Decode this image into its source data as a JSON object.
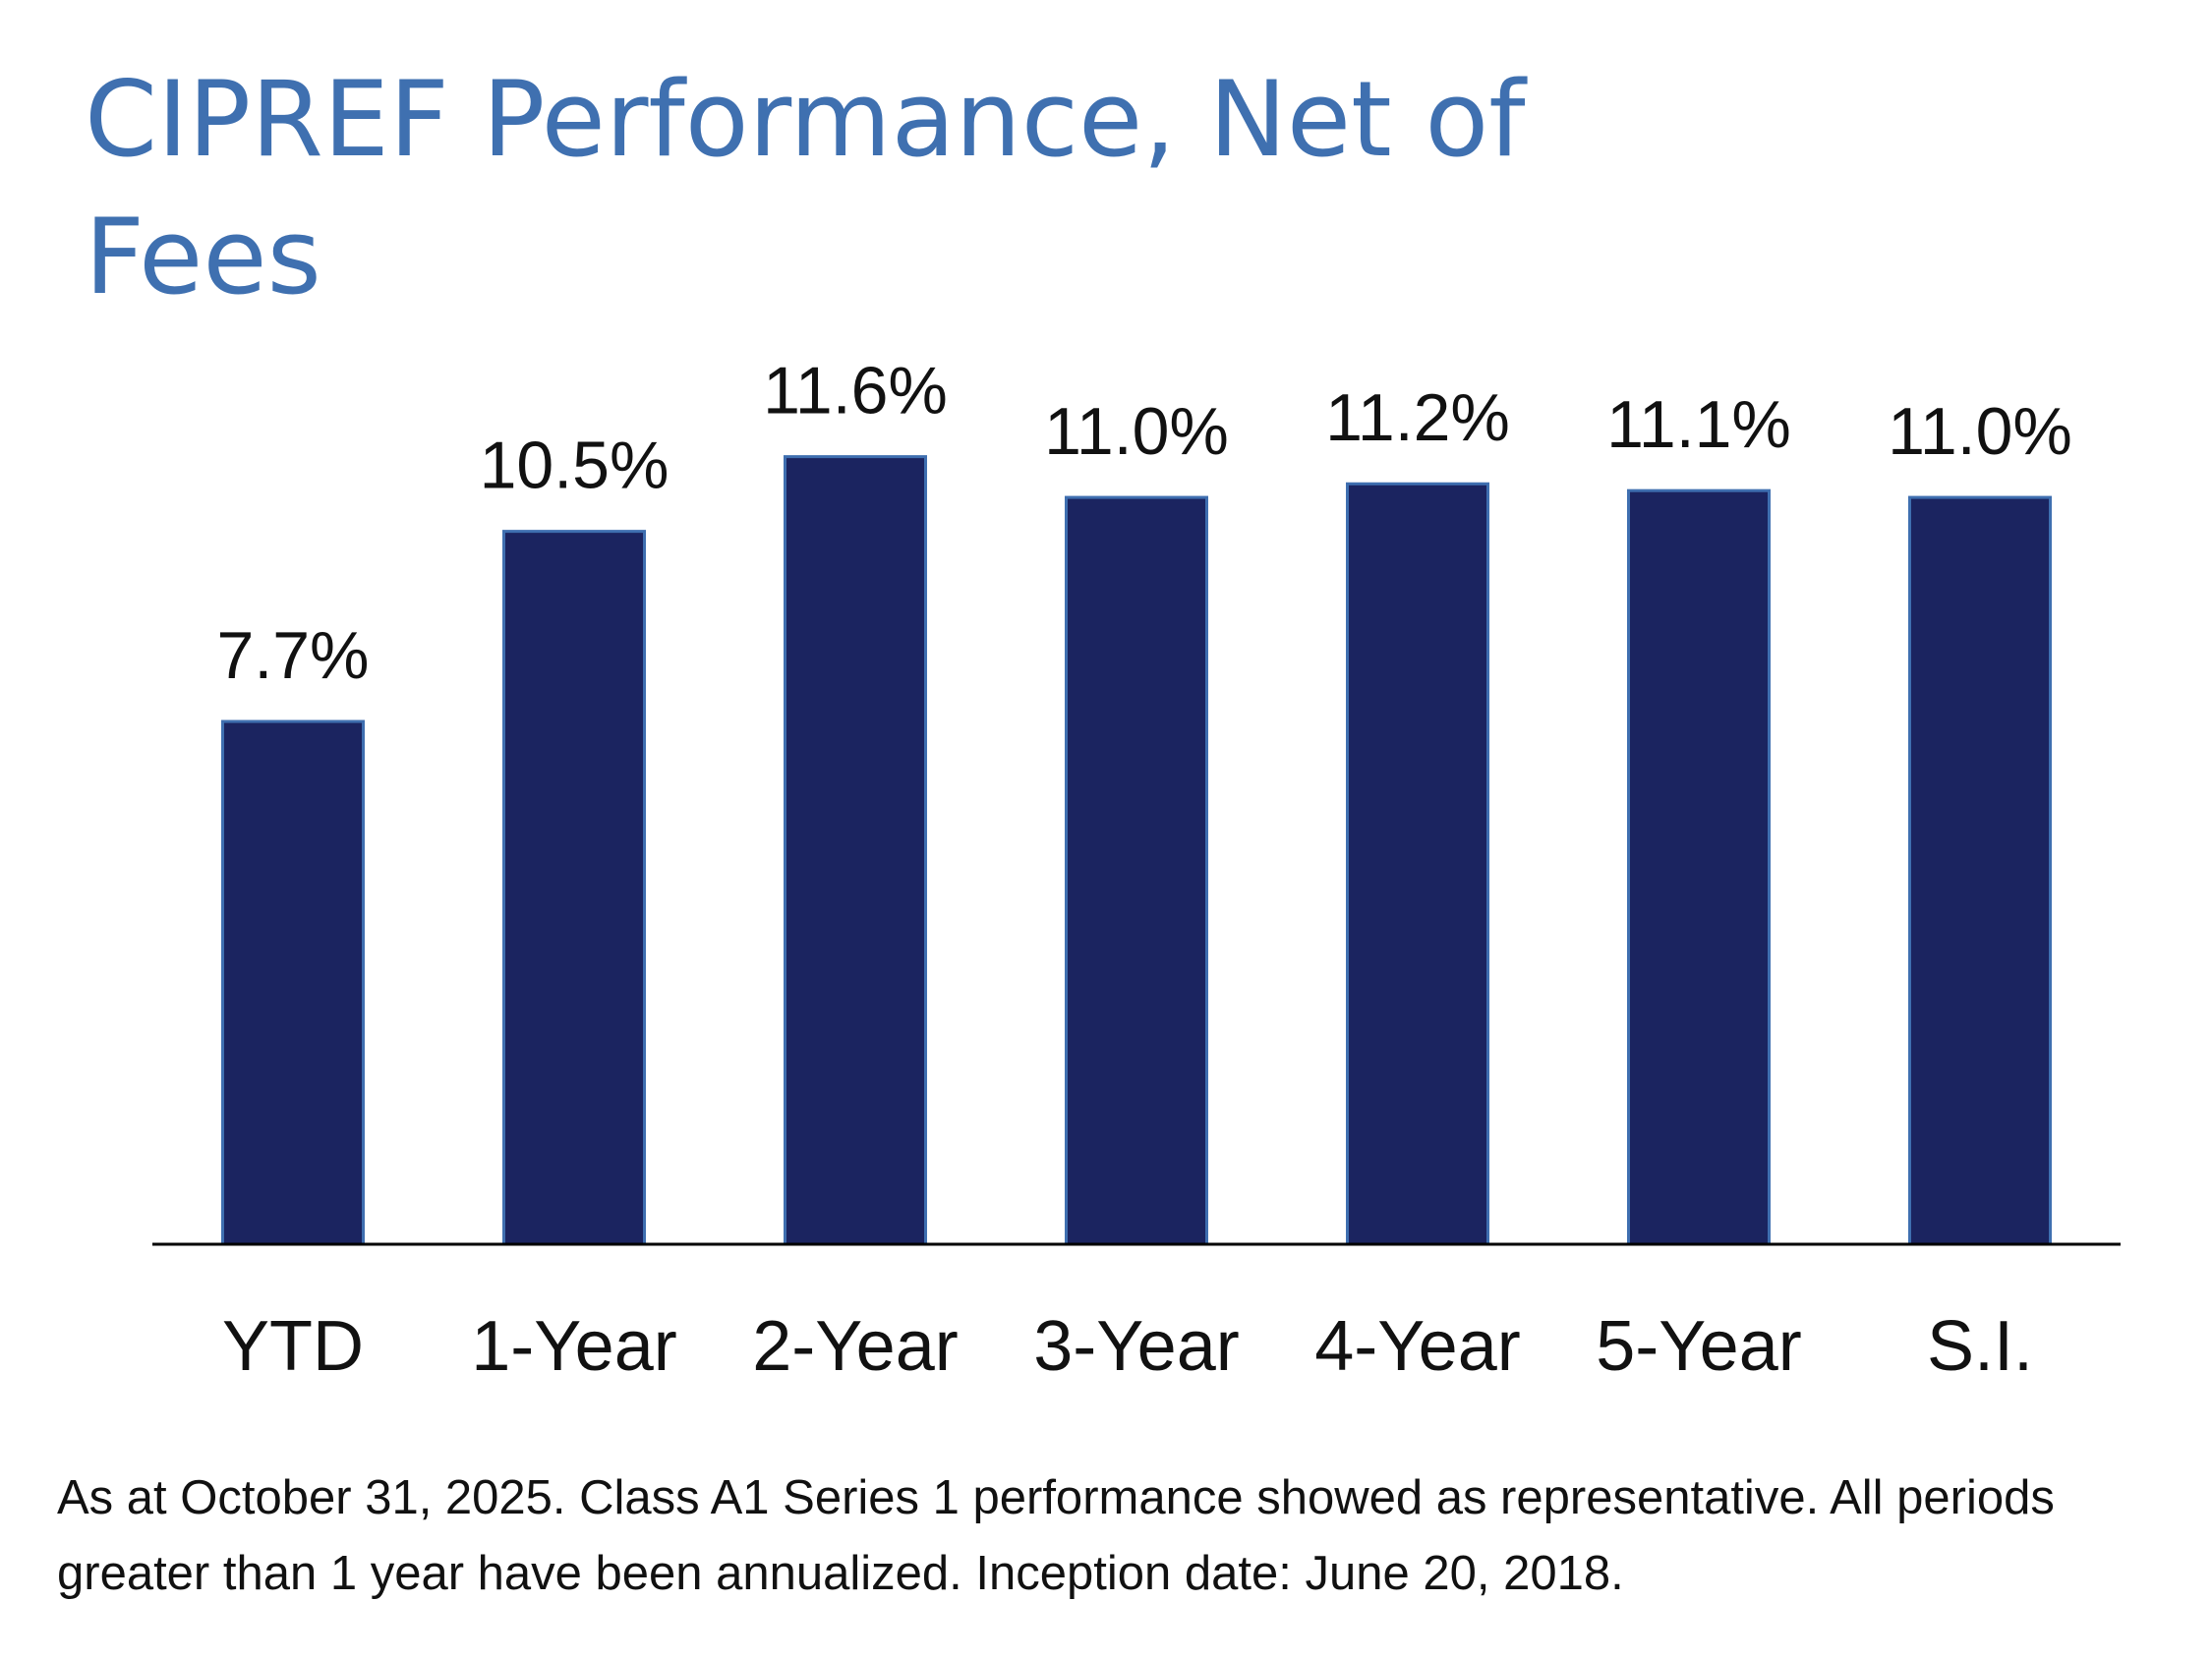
{
  "chart_data": {
    "type": "bar",
    "title": "CIPREF Performance, Net of Fees",
    "categories": [
      "YTD",
      "1-Year",
      "2-Year",
      "3-Year",
      "4-Year",
      "5-Year",
      "S.I."
    ],
    "values": [
      7.7,
      10.5,
      11.6,
      11.0,
      11.2,
      11.1,
      11.0
    ],
    "value_labels": [
      "7.7%",
      "10.5%",
      "11.6%",
      "11.0%",
      "11.2%",
      "11.1%",
      "11.0%"
    ],
    "color": "#1b2460",
    "ylim": [
      0,
      12
    ],
    "footnote": "As at October 31, 2025. Class A1 Series 1 performance showed as representative. All periods greater than 1 year have been annualized. Inception date: June 20, 2018."
  }
}
